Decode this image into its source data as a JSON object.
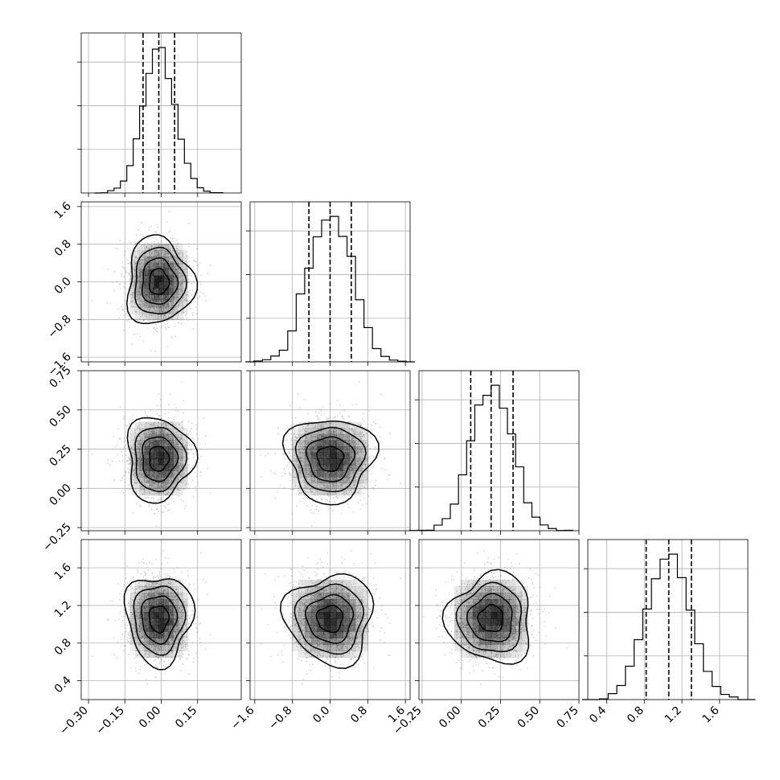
{
  "chart_data": {
    "type": "corner",
    "parameters": 4,
    "grid": true,
    "axes": [
      {
        "index": 0,
        "range": [
          -0.33,
          0.33
        ],
        "ticks": [
          -0.3,
          -0.15,
          0.0,
          0.15
        ],
        "tick_labels": [
          "−0.30",
          "−0.15",
          "0.00",
          "0.15"
        ]
      },
      {
        "index": 1,
        "range": [
          -1.7,
          1.7
        ],
        "ticks": [
          -1.6,
          -0.8,
          0.0,
          0.8,
          1.6
        ],
        "tick_labels": [
          "−1.6",
          "−0.8",
          "0.0",
          "0.8",
          "1.6"
        ]
      },
      {
        "index": 2,
        "range": [
          -0.27,
          0.75
        ],
        "ticks": [
          -0.25,
          0.0,
          0.25,
          0.5,
          0.75
        ],
        "tick_labels": [
          "−0.25",
          "0.00",
          "0.25",
          "0.50",
          "0.75"
        ]
      },
      {
        "index": 3,
        "range": [
          0.2,
          1.9
        ],
        "ticks": [
          0.4,
          0.8,
          1.2,
          1.6
        ],
        "tick_labels": [
          "0.4",
          "0.8",
          "1.2",
          "1.6"
        ]
      }
    ],
    "distributions": [
      {
        "index": 0,
        "mean": -0.01,
        "sd": 0.066,
        "quantiles": [
          -0.075,
          -0.01,
          0.055
        ]
      },
      {
        "index": 1,
        "mean": 0.0,
        "sd": 0.45,
        "quantiles": [
          -0.45,
          0.0,
          0.45
        ]
      },
      {
        "index": 2,
        "mean": 0.19,
        "sd": 0.13,
        "quantiles": [
          0.06,
          0.19,
          0.33
        ]
      },
      {
        "index": 3,
        "mean": 1.06,
        "sd": 0.23,
        "quantiles": [
          0.82,
          1.06,
          1.3
        ]
      }
    ],
    "histogram": {
      "bins": 20,
      "style": "step"
    },
    "contours": {
      "levels": [
        0.5,
        1.0,
        1.5,
        2.0
      ],
      "color": "#000000"
    },
    "colors": {
      "points": "#888888",
      "density": "#000000",
      "lines": "#000000"
    }
  }
}
